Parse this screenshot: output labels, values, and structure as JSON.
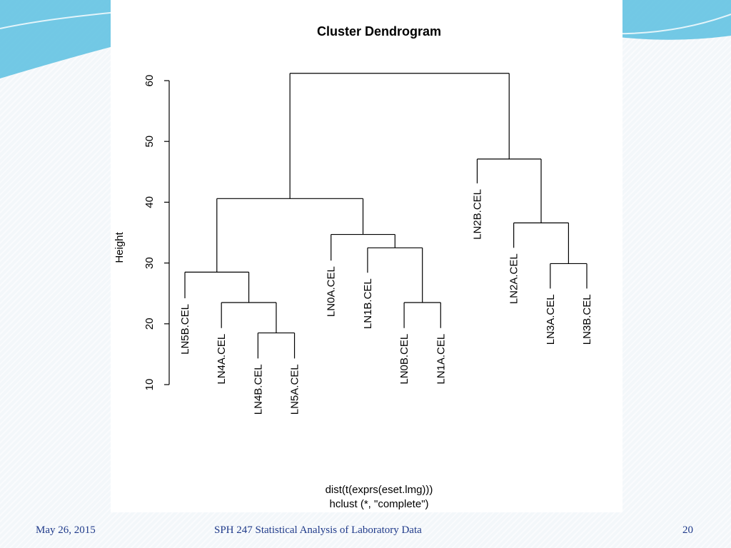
{
  "slide": {
    "footer_date": "May 26, 2015",
    "footer_title": "SPH 247 Statistical Analysis of Laboratory Data",
    "page_number": "20"
  },
  "colors": {
    "accent": "#1f3a8a",
    "decor": "#4ab3d6",
    "line": "#000000",
    "background": "#f3f7fa"
  },
  "chart_data": {
    "type": "dendrogram",
    "title": "Cluster Dendrogram",
    "ylabel": "Height",
    "xlabel_lines": [
      "dist(t(exprs(eset.lmg)))",
      "hclust (*, \"complete\")"
    ],
    "ylim": [
      10,
      62
    ],
    "yticks": [
      10,
      20,
      30,
      40,
      50,
      60
    ],
    "leaf_order": [
      "LN5B.CEL",
      "LN4A.CEL",
      "LN4B.CEL",
      "LN5A.CEL",
      "LN0A.CEL",
      "LN1B.CEL",
      "LN0B.CEL",
      "LN1A.CEL",
      "LN2B.CEL",
      "LN2A.CEL",
      "LN3A.CEL",
      "LN3B.CEL"
    ],
    "merges": [
      {
        "id": "m1",
        "left": "LN4B.CEL",
        "right": "LN5A.CEL",
        "height": 18.5
      },
      {
        "id": "m2",
        "left": "LN4A.CEL",
        "right": "m1",
        "height": 23.5
      },
      {
        "id": "m3",
        "left": "LN5B.CEL",
        "right": "m2",
        "height": 28.5
      },
      {
        "id": "m4",
        "left": "LN0B.CEL",
        "right": "LN1A.CEL",
        "height": 23.5
      },
      {
        "id": "m5",
        "left": "LN1B.CEL",
        "right": "m4",
        "height": 32.5
      },
      {
        "id": "m6",
        "left": "LN0A.CEL",
        "right": "m5",
        "height": 34.7
      },
      {
        "id": "m7",
        "left": "m3",
        "right": "m6",
        "height": 40.6
      },
      {
        "id": "m8",
        "left": "LN3A.CEL",
        "right": "LN3B.CEL",
        "height": 29.9
      },
      {
        "id": "m9",
        "left": "LN2A.CEL",
        "right": "m8",
        "height": 36.6
      },
      {
        "id": "m10",
        "left": "LN2B.CEL",
        "right": "m9",
        "height": 47.1
      },
      {
        "id": "m11",
        "left": "m7",
        "right": "m10",
        "height": 61.2
      }
    ],
    "leaf_tip_heights": {
      "LN5B.CEL": 24.2,
      "LN4A.CEL": 19.3,
      "LN4B.CEL": 14.3,
      "LN5A.CEL": 14.3,
      "LN0A.CEL": 30.4,
      "LN1B.CEL": 28.4,
      "LN0B.CEL": 19.3,
      "LN1A.CEL": 19.3,
      "LN2B.CEL": 43.1,
      "LN2A.CEL": 32.5,
      "LN3A.CEL": 25.8,
      "LN3B.CEL": 25.8
    }
  }
}
